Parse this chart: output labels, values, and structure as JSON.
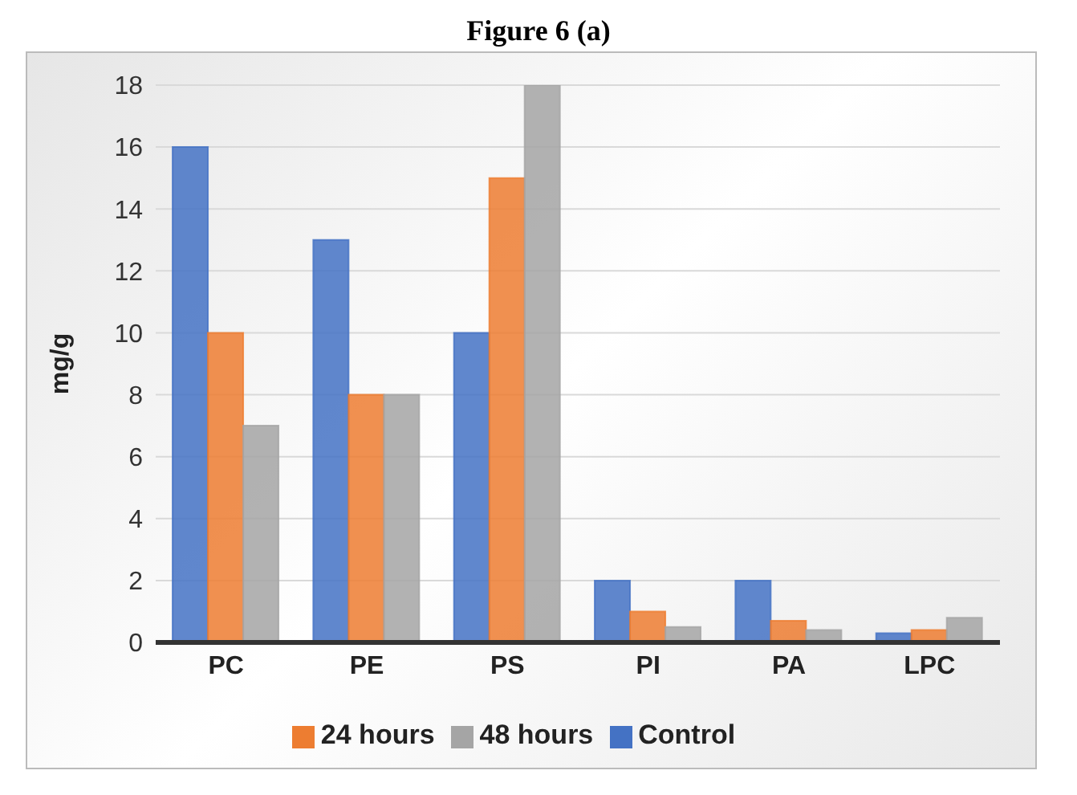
{
  "chart_data": {
    "type": "bar",
    "title": "Figure 6 (a)",
    "ylabel": "mg/g",
    "categories": [
      "PC",
      "PE",
      "PS",
      "PI",
      "PA",
      "LPC"
    ],
    "series": [
      {
        "name": "Control",
        "color": "#4472c4",
        "values": [
          16,
          13,
          10,
          2,
          2,
          0.3
        ]
      },
      {
        "name": "24 hours",
        "color": "#ed7d31",
        "values": [
          10,
          8,
          15,
          1,
          0.7,
          0.4
        ]
      },
      {
        "name": "48 hours",
        "color": "#a5a5a5",
        "values": [
          7,
          8,
          18,
          0.5,
          0.4,
          0.8
        ]
      }
    ],
    "ylim": [
      0,
      18
    ],
    "yticks": [
      0,
      2,
      4,
      6,
      8,
      10,
      12,
      14,
      16,
      18
    ],
    "grid": "y",
    "legend": "bottom"
  }
}
